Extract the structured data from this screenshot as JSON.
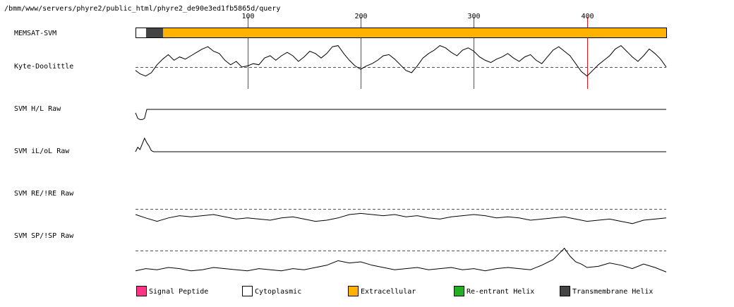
{
  "path_label": "/bmm/www/servers/phyre2/public_html/phyre2_de90e3ed1fb5865d/query",
  "chart_data": {
    "type": "line",
    "sequence_length": 470,
    "position_ticks": [
      100,
      200,
      300,
      400
    ],
    "tracks": [
      {
        "name": "MEMSAT-SVM",
        "kind": "topology",
        "segments": [
          {
            "start": 1,
            "end": 10,
            "class": "Cytoplasmic"
          },
          {
            "start": 10,
            "end": 25,
            "class": "Transmembrane Helix"
          },
          {
            "start": 25,
            "end": 470,
            "class": "Extracellular"
          }
        ]
      },
      {
        "name": "Kyte-Doolittle",
        "kind": "line",
        "baseline": true,
        "x": [
          1,
          5,
          10,
          15,
          20,
          25,
          30,
          35,
          40,
          45,
          50,
          55,
          60,
          65,
          70,
          75,
          80,
          85,
          90,
          95,
          100,
          105,
          110,
          115,
          120,
          125,
          130,
          135,
          140,
          145,
          150,
          155,
          160,
          165,
          170,
          175,
          180,
          185,
          190,
          195,
          200,
          205,
          210,
          215,
          220,
          225,
          230,
          235,
          240,
          245,
          250,
          255,
          260,
          265,
          270,
          275,
          280,
          285,
          290,
          295,
          300,
          305,
          310,
          315,
          320,
          325,
          330,
          335,
          340,
          345,
          350,
          355,
          360,
          365,
          370,
          375,
          380,
          385,
          390,
          395,
          400,
          405,
          410,
          415,
          420,
          425,
          430,
          435,
          440,
          445,
          450,
          455,
          460,
          465,
          470
        ],
        "y": [
          -0.3,
          -0.6,
          -0.8,
          -0.5,
          0.2,
          0.7,
          1.1,
          0.6,
          0.9,
          0.7,
          1.0,
          1.3,
          1.6,
          1.8,
          1.4,
          1.2,
          0.6,
          0.2,
          0.5,
          0.0,
          0.1,
          0.3,
          0.2,
          0.8,
          1.0,
          0.6,
          1.0,
          1.3,
          1.0,
          0.5,
          0.9,
          1.4,
          1.2,
          0.8,
          1.2,
          1.8,
          1.9,
          1.2,
          0.6,
          0.1,
          -0.2,
          0.1,
          0.3,
          0.6,
          1.0,
          1.1,
          0.7,
          0.2,
          -0.3,
          -0.5,
          0.1,
          0.8,
          1.2,
          1.5,
          1.9,
          1.7,
          1.3,
          1.0,
          1.5,
          1.7,
          1.4,
          0.9,
          0.6,
          0.4,
          0.7,
          0.9,
          1.2,
          0.8,
          0.5,
          0.9,
          1.1,
          0.6,
          0.3,
          0.9,
          1.5,
          1.8,
          1.4,
          1.0,
          0.3,
          -0.4,
          -0.8,
          -0.3,
          0.2,
          0.6,
          1.0,
          1.6,
          1.9,
          1.4,
          0.9,
          0.5,
          1.0,
          1.6,
          1.2,
          0.7,
          0.0
        ]
      },
      {
        "name": "SVM H/L Raw",
        "kind": "line",
        "baseline": false,
        "x": [
          1,
          3,
          5,
          7,
          9,
          11,
          13,
          470
        ],
        "y": [
          -0.3,
          -0.8,
          -0.9,
          -0.9,
          -0.8,
          0.0,
          0.0,
          0.0
        ]
      },
      {
        "name": "SVM iL/oL Raw",
        "kind": "line",
        "baseline": false,
        "x": [
          1,
          3,
          5,
          7,
          9,
          11,
          13,
          15,
          17,
          470
        ],
        "y": [
          0.0,
          0.4,
          0.2,
          0.7,
          1.2,
          0.8,
          0.5,
          0.1,
          0.0,
          0.0
        ]
      },
      {
        "name": "SVM RE/!RE Raw",
        "kind": "line",
        "baseline": true,
        "x": [
          1,
          10,
          20,
          30,
          40,
          50,
          60,
          70,
          80,
          90,
          100,
          110,
          120,
          130,
          140,
          150,
          160,
          170,
          180,
          190,
          200,
          210,
          220,
          230,
          240,
          250,
          260,
          270,
          280,
          290,
          300,
          310,
          320,
          330,
          340,
          350,
          360,
          370,
          380,
          390,
          400,
          410,
          420,
          430,
          440,
          450,
          460,
          470
        ],
        "y": [
          -0.5,
          -0.8,
          -1.1,
          -0.8,
          -0.6,
          -0.7,
          -0.6,
          -0.5,
          -0.7,
          -0.9,
          -0.8,
          -0.9,
          -1.0,
          -0.8,
          -0.7,
          -0.9,
          -1.1,
          -1.0,
          -0.8,
          -0.5,
          -0.4,
          -0.5,
          -0.6,
          -0.5,
          -0.7,
          -0.6,
          -0.8,
          -0.9,
          -0.7,
          -0.6,
          -0.5,
          -0.6,
          -0.8,
          -0.7,
          -0.8,
          -1.0,
          -0.9,
          -0.8,
          -0.7,
          -0.9,
          -1.1,
          -1.0,
          -0.9,
          -1.1,
          -1.3,
          -1.0,
          -0.9,
          -0.8
        ]
      },
      {
        "name": "SVM SP/!SP Raw",
        "kind": "line",
        "baseline": true,
        "x": [
          1,
          10,
          20,
          30,
          40,
          50,
          60,
          70,
          80,
          90,
          100,
          110,
          120,
          130,
          140,
          150,
          160,
          170,
          180,
          190,
          200,
          210,
          220,
          230,
          240,
          250,
          260,
          270,
          280,
          290,
          300,
          310,
          320,
          330,
          340,
          350,
          360,
          370,
          375,
          380,
          385,
          390,
          395,
          400,
          410,
          420,
          430,
          440,
          450,
          460,
          470
        ],
        "y": [
          -1.8,
          -1.6,
          -1.7,
          -1.5,
          -1.6,
          -1.8,
          -1.7,
          -1.5,
          -1.6,
          -1.7,
          -1.8,
          -1.6,
          -1.7,
          -1.8,
          -1.6,
          -1.7,
          -1.5,
          -1.3,
          -0.9,
          -1.1,
          -1.0,
          -1.3,
          -1.5,
          -1.7,
          -1.6,
          -1.5,
          -1.7,
          -1.6,
          -1.5,
          -1.7,
          -1.6,
          -1.8,
          -1.6,
          -1.5,
          -1.6,
          -1.7,
          -1.3,
          -0.8,
          -0.3,
          0.2,
          -0.5,
          -1.0,
          -1.2,
          -1.5,
          -1.4,
          -1.1,
          -1.3,
          -1.6,
          -1.2,
          -1.5,
          -1.9
        ]
      }
    ],
    "legend": [
      {
        "label": "Signal Peptide",
        "color": "#ff3388"
      },
      {
        "label": "Cytoplasmic",
        "color": "#ffffff"
      },
      {
        "label": "Extracellular",
        "color": "#ffb300"
      },
      {
        "label": "Re-entrant Helix",
        "color": "#22b022"
      },
      {
        "label": "Transmembrane Helix",
        "color": "#444444"
      }
    ],
    "colors": {
      "tick_line": "#ee1111",
      "trace": "#000000",
      "baseline": "#555555"
    }
  }
}
